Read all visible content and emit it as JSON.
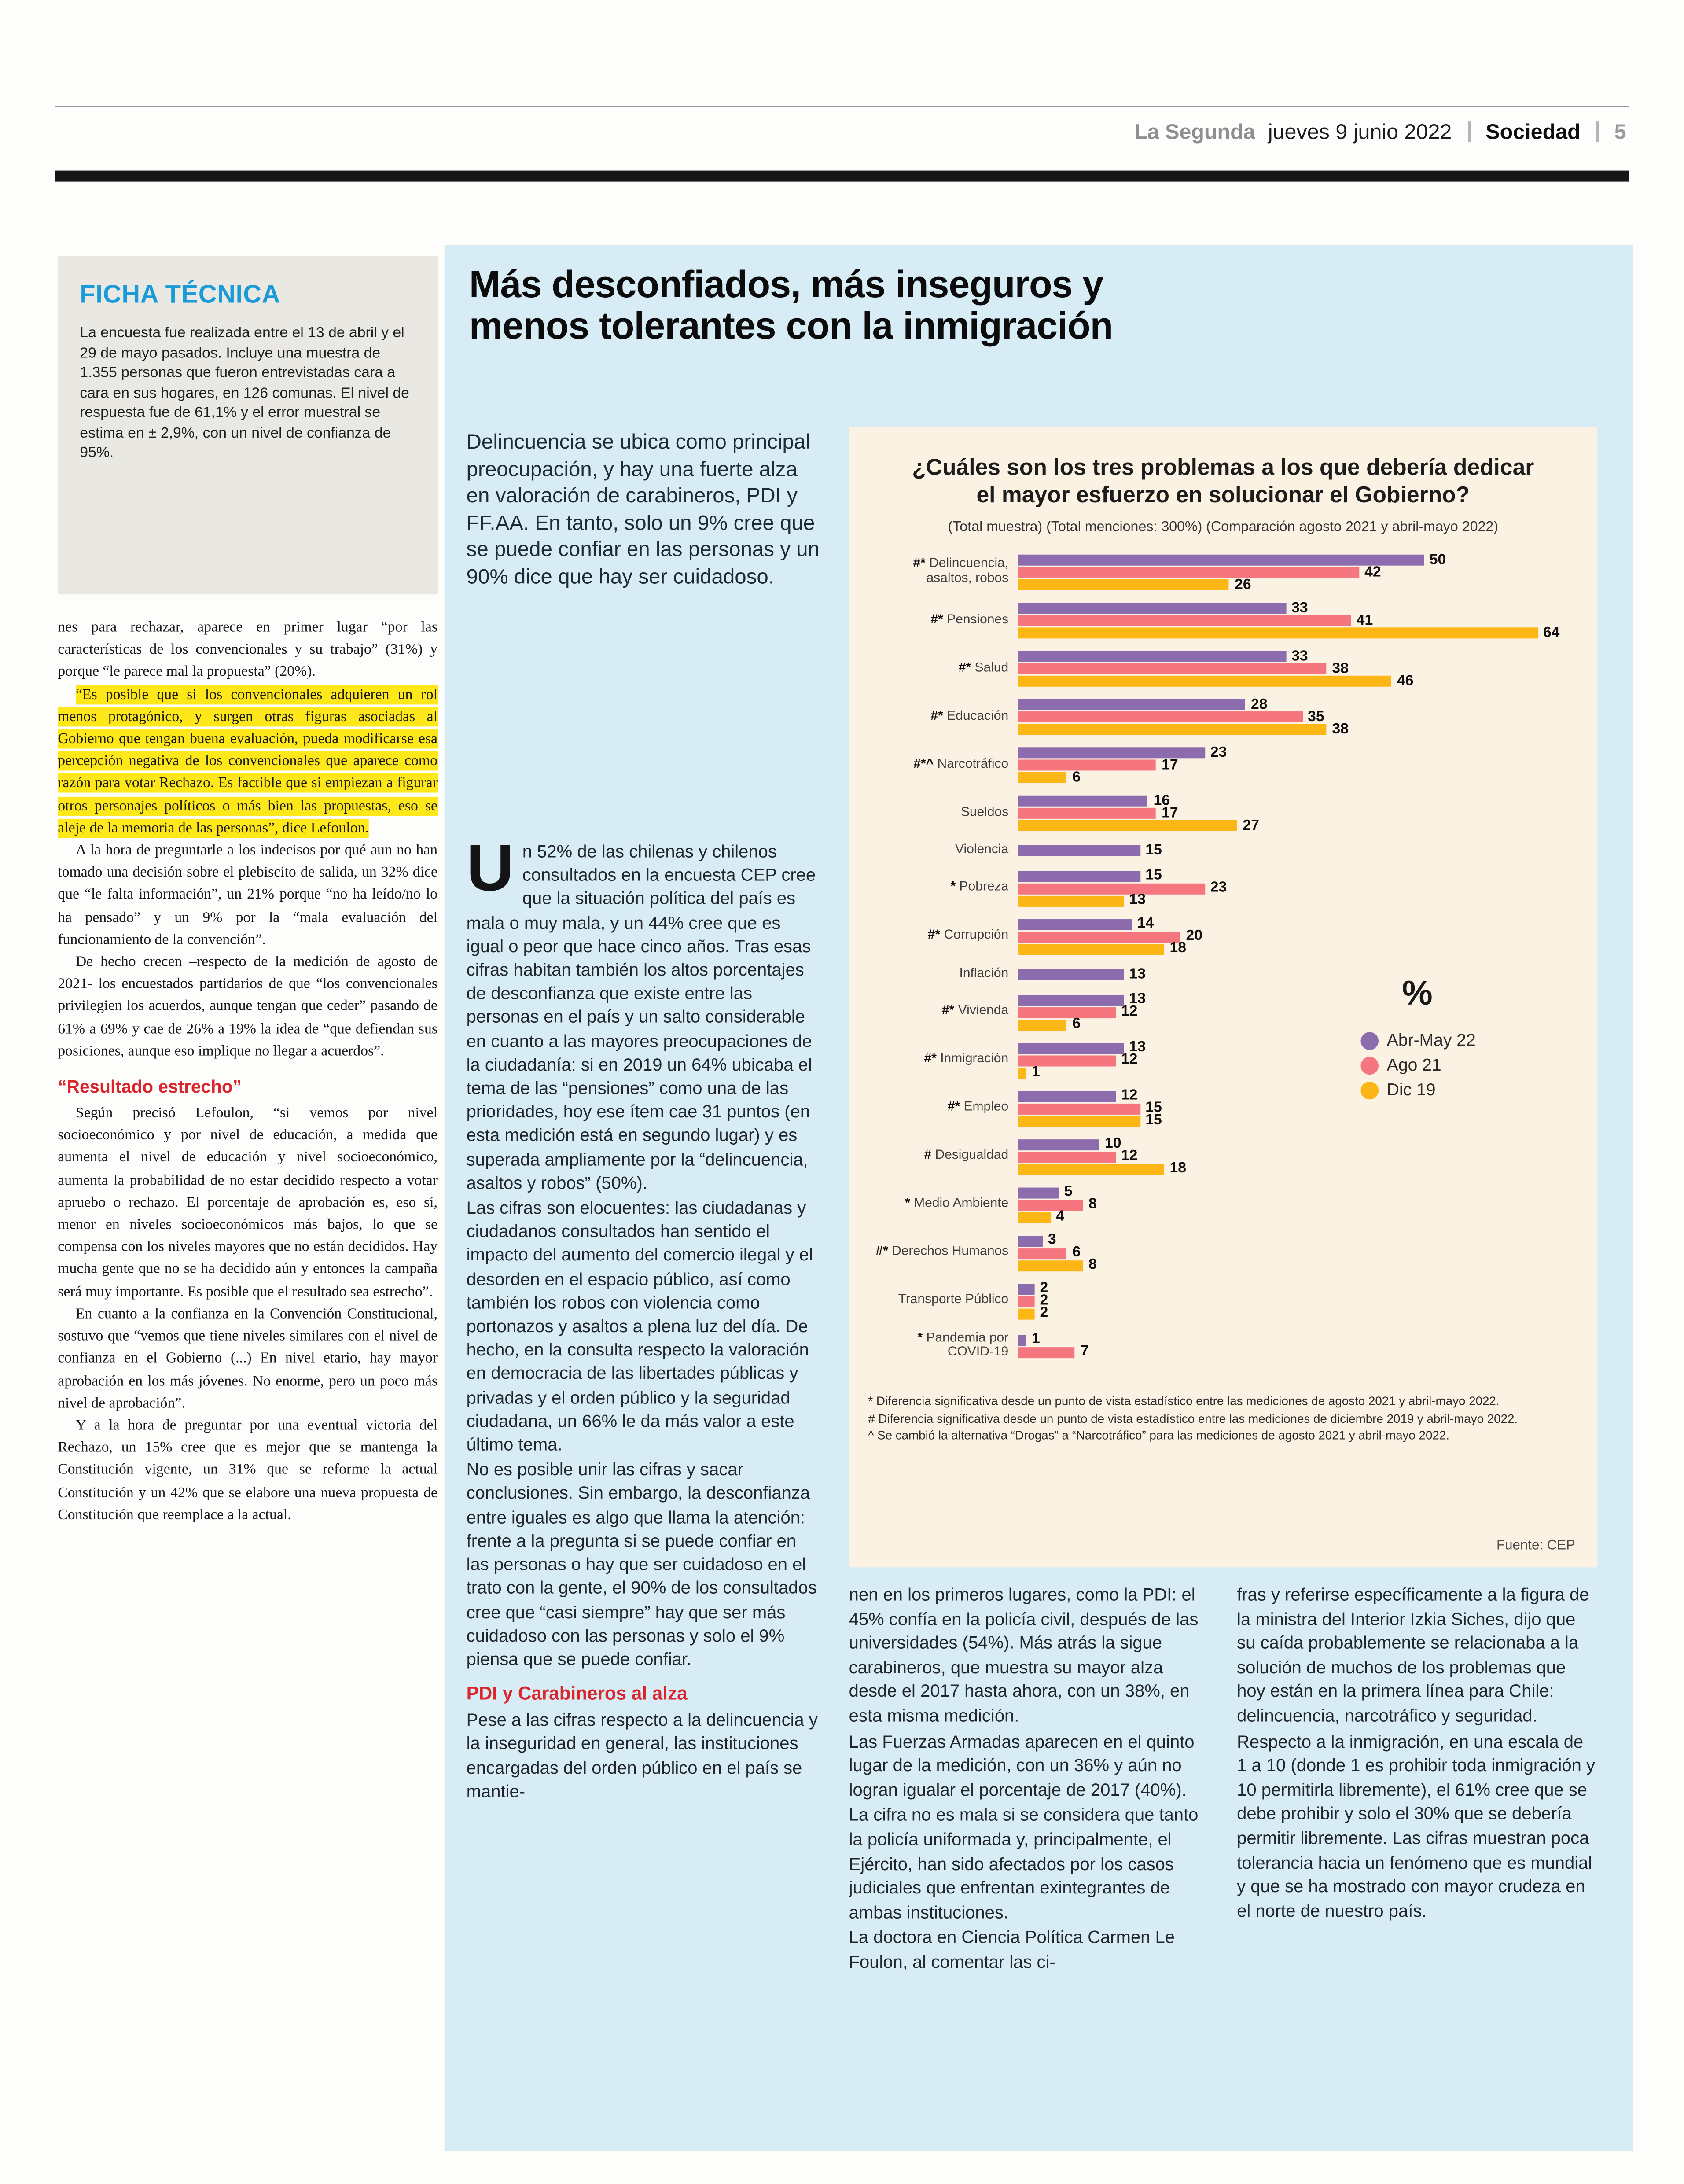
{
  "header": {
    "brand": "La Segunda",
    "date": "jueves 9 junio 2022",
    "section": "Sociedad",
    "page_number": "5"
  },
  "ficha_tecnica": {
    "title": "FICHA TÉCNICA",
    "body": "La encuesta fue realizada entre el 13 de abril y el 29 de mayo pasados. Incluye una muestra de 1.355 personas que fueron entrevistadas cara a cara en sus hogares, en 126 comunas. El nivel de respuesta fue de 61,1% y el error muestral se estima en ± 2,9%, con un nivel de confianza de 95%."
  },
  "headline": {
    "line1": "Más desconfiados, más inseguros y",
    "line2": "menos tolerantes con la inmigración"
  },
  "lead": "Delincuencia se ubica como principal preocupación, y hay una fuerte alza en valoración de carabineros, PDI y FF.AA. En tanto, solo un 9% cree que se puede confiar en las personas y un 90% dice que hay ser cuidadoso.",
  "left_column": {
    "blocks": [
      {
        "type": "p",
        "noindent": true,
        "text": "nes para rechazar, aparece en primer lugar “por las características de los convencionales y su trabajo” (31%) y porque “le parece mal la propuesta” (20%)."
      },
      {
        "type": "highlight",
        "text": "“Es posible que si los convencionales adquieren un rol menos protagónico, y surgen otras figuras asociadas al Gobierno que tengan buena evaluación, pueda modificarse esa percepción negativa de los convencionales que aparece como razón para votar Rechazo. Es factible que si empiezan a figurar otros personajes políticos o más bien las propuestas, eso se aleje de la memoria de las personas”, dice Lefoulon."
      },
      {
        "type": "p",
        "text": "A la hora de preguntarle a los indecisos por qué aun no han tomado una decisión sobre el plebiscito de salida, un 32% dice que “le falta información”, un 21% porque “no ha leído/no lo ha pensado” y un 9% por la “mala evaluación del funcionamiento de la convención”."
      },
      {
        "type": "p",
        "text": "De hecho crecen –respecto de la medición de agosto de 2021- los encuestados partidarios de que “los convencionales privilegien los acuerdos, aunque tengan que ceder” pasando de 61% a 69% y cae de 26% a 19% la idea de “que defiendan sus posiciones, aunque eso implique no llegar a acuerdos”."
      },
      {
        "type": "subhead",
        "text": "“Resultado estrecho”"
      },
      {
        "type": "p",
        "text": "Según precisó Lefoulon, “si vemos por nivel socioeconómico y por nivel de educación, a medida que aumenta el nivel de educación y nivel socioeconómico, aumenta la probabilidad de no estar decidido respecto a votar apruebo o rechazo. El porcentaje de aprobación es, eso sí, menor en niveles socioeconómicos más bajos, lo que se compensa con los niveles mayores que no están decididos. Hay mucha gente que no se ha decidido aún y entonces la campaña será muy importante. Es posible que el resultado sea estrecho”."
      },
      {
        "type": "p",
        "text": "En cuanto a la confianza en la Convención Constitucional, sostuvo que “vemos que tiene niveles similares con el nivel de confianza en el Gobierno (...) En nivel etario, hay mayor aprobación en los más jóvenes. No enorme, pero un poco más nivel de aprobación”."
      },
      {
        "type": "p",
        "text": "Y a la hora de preguntar por una eventual victoria del Rechazo, un 15% cree que es mejor que se mantenga la Constitución vigente, un 31% que se reforme la actual Constitución y un 42% que se elabore una nueva propuesta de Constitución que reemplace a la actual."
      }
    ]
  },
  "middle_column": {
    "blocks": [
      {
        "type": "dropcap",
        "cap": "U",
        "text": "n 52% de las chilenas y chilenos consultados en la encuesta CEP cree que la situación política del país es mala o muy mala, y un 44% cree que es igual o peor que hace cinco años. Tras esas cifras habitan también los altos porcentajes de desconfianza que existe entre las personas en el país y un salto considerable en cuanto a las mayores preocupaciones de la ciudadanía: si en 2019 un 64% ubicaba el tema de las “pensiones” como una de las prioridades, hoy ese ítem cae 31 puntos (en esta medición está en segundo lugar) y es superada ampliamente por la “delincuencia, asaltos y robos” (50%)."
      },
      {
        "type": "p",
        "text": "Las cifras son elocuentes: las ciudadanas y ciudadanos consultados han sentido el impacto del aumento del comercio ilegal y el desorden en el espacio público, así como también los robos con violencia como portonazos y asaltos a plena luz del día. De hecho, en la consulta respecto la valoración en democracia de las libertades públicas y privadas y el orden público y la seguridad ciudadana, un 66% le da más valor a este último tema."
      },
      {
        "type": "p",
        "text": "No es posible unir las cifras y sacar conclusiones. Sin embargo, la desconfianza entre iguales es algo que llama la atención: frente a la pregunta si se puede confiar en las personas o hay que ser cuidadoso en el trato con la gente, el 90% de los consultados cree que “casi siempre” hay que ser más cuidadoso con las personas y solo el 9% piensa que se puede confiar."
      },
      {
        "type": "subhead",
        "text": "PDI y Carabineros al alza"
      },
      {
        "type": "p",
        "text": "Pese a las cifras respecto a la delincuencia y la inseguridad en general, las instituciones encargadas del orden público en el país se mantie-"
      }
    ]
  },
  "bottom_columns": {
    "column1": [
      {
        "type": "p",
        "text": "nen en los primeros lugares, como la PDI: el 45% confía en la policía civil, después de las universidades (54%). Más atrás la sigue carabineros, que muestra su mayor alza desde el 2017 hasta ahora, con un 38%, en esta misma medición."
      },
      {
        "type": "p",
        "text": "Las Fuerzas Armadas aparecen en el quinto lugar de la medición, con un 36% y aún no logran igualar el porcentaje de 2017 (40%)."
      },
      {
        "type": "p",
        "text": "La cifra no es mala si se considera que tanto la policía uniformada y, principalmente, el Ejército, han sido afectados por los casos judiciales que enfrentan exintegrantes de ambas instituciones."
      },
      {
        "type": "p",
        "text": "La doctora en Ciencia Política Carmen Le Foulon, al comentar las ci-"
      }
    ],
    "column2": [
      {
        "type": "p",
        "text": "fras y referirse específicamente a la figura de la ministra del Interior Izkia Siches, dijo que su caída probablemente se relacionaba a la solución de muchos de los problemas que hoy están en la primera línea para Chile: delincuencia, narcotráfico y seguridad."
      },
      {
        "type": "p",
        "text": "Respecto a la inmigración, en una escala de 1 a 10 (donde 1 es prohibir toda inmigración y 10 permitirla libremente), el 61% cree que se debe prohibir y solo el 30% que se debería permitir libremente. Las cifras muestran poca tolerancia hacia un fenómeno que es mundial y que se ha mostrado con mayor crudeza en el norte de nuestro país."
      }
    ]
  },
  "chart_data": {
    "type": "bar",
    "orientation": "horizontal",
    "title": "¿Cuáles son los tres problemas a los que debería dedicar el mayor esfuerzo en solucionar el Gobierno?",
    "subtitle": "(Total muestra) (Total menciones: 300%) (Comparación agosto 2021 y abril-mayo 2022)",
    "unit": "%",
    "xlim": [
      0,
      64
    ],
    "grid": false,
    "legend_position": "right-middle",
    "panel_color": "#fcf2e4",
    "series": [
      {
        "name": "Abr-May 22",
        "color": "#8d6cae"
      },
      {
        "name": "Ago 21",
        "color": "#f5767f"
      },
      {
        "name": "Dic 19",
        "color": "#fcb616"
      }
    ],
    "categories": [
      {
        "prefix": "#*",
        "label": "Delincuencia, asaltos, robos",
        "values": [
          50,
          42,
          26
        ]
      },
      {
        "prefix": "#*",
        "label": "Pensiones",
        "values": [
          33,
          41,
          64
        ]
      },
      {
        "prefix": "#*",
        "label": "Salud",
        "values": [
          33,
          38,
          46
        ]
      },
      {
        "prefix": "#*",
        "label": "Educación",
        "values": [
          28,
          35,
          38
        ]
      },
      {
        "prefix": "#*^",
        "label": "Narcotráfico",
        "values": [
          23,
          17,
          6
        ]
      },
      {
        "prefix": "",
        "label": "Sueldos",
        "values": [
          16,
          17,
          27
        ]
      },
      {
        "prefix": "",
        "label": "Violencia",
        "values": [
          15,
          null,
          null
        ]
      },
      {
        "prefix": "*",
        "label": "Pobreza",
        "values": [
          15,
          23,
          13
        ]
      },
      {
        "prefix": "#*",
        "label": "Corrupción",
        "values": [
          14,
          20,
          18
        ]
      },
      {
        "prefix": "",
        "label": "Inflación",
        "values": [
          13,
          null,
          null
        ]
      },
      {
        "prefix": "#*",
        "label": "Vivienda",
        "values": [
          13,
          12,
          6
        ]
      },
      {
        "prefix": "#*",
        "label": "Inmigración",
        "values": [
          13,
          12,
          1
        ]
      },
      {
        "prefix": "#*",
        "label": "Empleo",
        "values": [
          12,
          15,
          15
        ]
      },
      {
        "prefix": "#",
        "label": "Desigualdad",
        "values": [
          10,
          12,
          18
        ]
      },
      {
        "prefix": "*",
        "label": "Medio Ambiente",
        "values": [
          5,
          8,
          4
        ]
      },
      {
        "prefix": "#*",
        "label": "Derechos Humanos",
        "values": [
          3,
          6,
          8
        ]
      },
      {
        "prefix": "",
        "label": "Transporte Público",
        "values": [
          2,
          2,
          2
        ]
      },
      {
        "prefix": "*",
        "label": "Pandemia por COVID-19",
        "values": [
          1,
          7,
          null
        ]
      }
    ],
    "footnotes": [
      "* Diferencia significativa desde un punto de vista estadístico entre las mediciones de agosto 2021 y abril-mayo 2022.",
      "# Diferencia significativa desde un punto de vista estadístico entre las mediciones de diciembre 2019 y abril-mayo 2022.",
      "^ Se cambió la alternativa “Drogas” a “Narcotráfico” para las mediciones de agosto 2021 y abril-mayo 2022."
    ],
    "source": "Fuente: CEP"
  }
}
